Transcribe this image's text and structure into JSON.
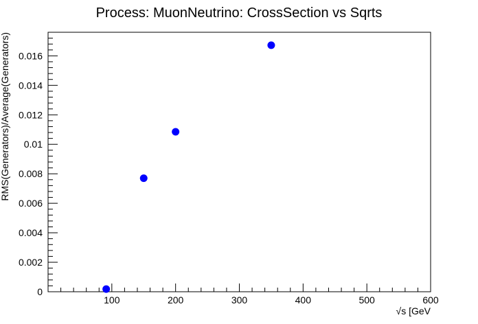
{
  "chart_data": {
    "type": "scatter",
    "title": "Process: MuonNeutrino: CrossSection vs Sqrts",
    "xlabel": "√s [GeV",
    "ylabel": "RMS(Generators)/Average(Generators)",
    "xlim": [
      0,
      600
    ],
    "ylim": [
      0,
      0.0176
    ],
    "xticks": [
      100,
      200,
      300,
      400,
      500,
      600
    ],
    "xtick_labels": [
      "100",
      "200",
      "300",
      "400",
      "500",
      "600"
    ],
    "yticks": [
      0,
      0.002,
      0.004,
      0.006,
      0.008,
      0.01,
      0.012,
      0.014,
      0.016
    ],
    "ytick_labels": [
      "0",
      "0.002",
      "0.004",
      "0.006",
      "0.008",
      "0.01",
      "0.012",
      "0.014",
      "0.016"
    ],
    "grid": false,
    "legend": "none",
    "series": [
      {
        "color": "#0000ff",
        "x": [
          91.2,
          150,
          200,
          350
        ],
        "y": [
          0.00018,
          0.0077,
          0.01085,
          0.01672
        ]
      }
    ]
  }
}
